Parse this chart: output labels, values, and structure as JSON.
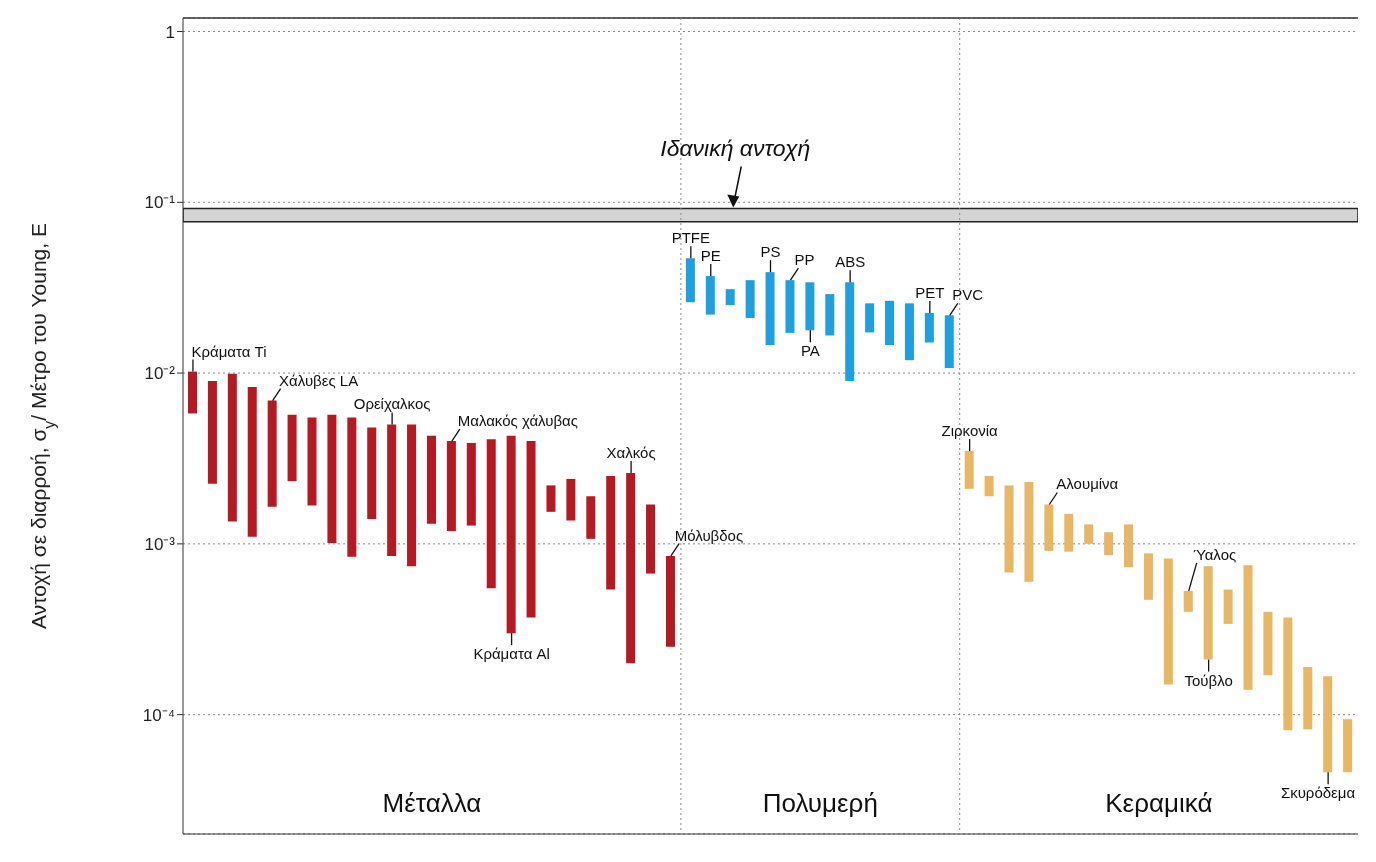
{
  "chart_data": {
    "type": "bar",
    "ylabel": "Αντοχή σε διαρροή, σ$_{y}$/ Μέτρο του Young, E",
    "categories": [
      null,
      null,
      null,
      null,
      null,
      null,
      null,
      null,
      null,
      null,
      null,
      null,
      null,
      null,
      null,
      null,
      null,
      null,
      null,
      null,
      null,
      null,
      null,
      null,
      null,
      null,
      null,
      null,
      null,
      null,
      null,
      null,
      null,
      null,
      null,
      null,
      null,
      null,
      null,
      null,
      null,
      null,
      null,
      null,
      null,
      null,
      null,
      null,
      null,
      null,
      null,
      null,
      null,
      null,
      null,
      null,
      null,
      null,
      null
    ],
    "log": true,
    "ylim": [
      2e-05,
      1.2
    ],
    "yticks": [
      1,
      {
        "value": 0.1,
        "label": "10⁻¹"
      },
      {
        "value": 0.01,
        "label": "10⁻²"
      },
      {
        "value": 0.001,
        "label": "10⁻³"
      },
      {
        "value": 0.0001,
        "label": "10⁻⁴"
      }
    ],
    "grid": true,
    "tick_labels": "y",
    "annotations": [
      "Μέταλλα",
      "Πολυμερή",
      "Κεραμικά"
    ],
    "bands": [
      {
        "axis": "y",
        "from": 0.077,
        "to": 0.092,
        "label": "Ιδανική αντοχή",
        "color": "#d4d4d4"
      }
    ],
    "series": [
      {
        "color": "#b51a22",
        "base": [
          0.0058,
          0.00225,
          0.00135,
          0.0011,
          0.00165,
          0.00233,
          0.00168,
          0.00101,
          0.00084,
          0.0014,
          0.00085,
          0.00074,
          0.00131,
          0.00119,
          0.00128,
          0.00055,
          0.0003,
          0.00037,
          0.00154,
          0.00137,
          0.00107,
          0.00054,
          0.0002,
          0.00067,
          0.00025,
          null,
          null,
          null,
          null,
          null,
          null,
          null,
          null,
          null,
          null,
          null,
          null,
          null,
          null,
          null,
          null,
          null,
          null,
          null,
          null,
          null,
          null,
          null,
          null,
          null,
          null,
          null,
          null,
          null,
          null,
          null,
          null,
          null,
          null
        ],
        "values": [
          0.0044,
          0.00675,
          0.00855,
          0.0072,
          0.00525,
          0.00337,
          0.00382,
          0.00469,
          0.00466,
          0.0034,
          0.00415,
          0.00426,
          0.00299,
          0.00281,
          0.00262,
          0.00355,
          0.004,
          0.00363,
          0.00066,
          0.00103,
          0.00083,
          0.00196,
          0.0024,
          0.00103,
          0.0006,
          null,
          null,
          null,
          null,
          null,
          null,
          null,
          null,
          null,
          null,
          null,
          null,
          null,
          null,
          null,
          null,
          null,
          null,
          null,
          null,
          null,
          null,
          null,
          null,
          null,
          null,
          null,
          null,
          null,
          null,
          null,
          null,
          null,
          null
        ],
        "value_labels": [
          "Κράματα Ti",
          null,
          null,
          null,
          "Χάλυβες LA",
          null,
          null,
          null,
          null,
          null,
          "Ορείχαλκος",
          null,
          null,
          "Μαλακός χάλυβας",
          null,
          null,
          "Κράματα Al",
          null,
          null,
          null,
          null,
          null,
          "Χαλκός",
          null,
          "Μόλυβδος",
          null,
          null,
          null,
          null,
          null,
          null,
          null,
          null,
          null,
          null,
          null,
          null,
          null,
          null,
          null,
          null,
          null,
          null,
          null,
          null,
          null,
          null,
          null,
          null,
          null,
          null,
          null,
          null,
          null,
          null,
          null,
          null,
          null,
          null
        ]
      },
      {
        "color": "#1e9fe0",
        "base": [
          null,
          null,
          null,
          null,
          null,
          null,
          null,
          null,
          null,
          null,
          null,
          null,
          null,
          null,
          null,
          null,
          null,
          null,
          null,
          null,
          null,
          null,
          null,
          null,
          null,
          0.026,
          0.022,
          0.025,
          0.021,
          0.0146,
          0.0172,
          0.0178,
          0.0166,
          0.009,
          0.0173,
          0.0146,
          0.0119,
          0.0151,
          0.0107,
          null,
          null,
          null,
          null,
          null,
          null,
          null,
          null,
          null,
          null,
          null,
          null,
          null,
          null,
          null,
          null,
          null,
          null,
          null,
          null
        ],
        "values": [
          null,
          null,
          null,
          null,
          null,
          null,
          null,
          null,
          null,
          null,
          null,
          null,
          null,
          null,
          null,
          null,
          null,
          null,
          null,
          null,
          null,
          null,
          null,
          null,
          null,
          0.021,
          0.015,
          0.006,
          0.014,
          0.0244,
          0.0178,
          0.0162,
          0.0124,
          0.025,
          0.0083,
          0.0119,
          0.0137,
          0.0074,
          0.0111,
          null,
          null,
          null,
          null,
          null,
          null,
          null,
          null,
          null,
          null,
          null,
          null,
          null,
          null,
          null,
          null,
          null,
          null,
          null,
          null
        ],
        "value_labels": [
          null,
          null,
          null,
          null,
          null,
          null,
          null,
          null,
          null,
          null,
          null,
          null,
          null,
          null,
          null,
          null,
          null,
          null,
          null,
          null,
          null,
          null,
          null,
          null,
          null,
          "PTFE",
          "PE",
          null,
          null,
          "PS",
          "PP",
          "PA",
          null,
          "ABS",
          null,
          null,
          null,
          "PET",
          "PVC",
          null,
          null,
          null,
          null,
          null,
          null,
          null,
          null,
          null,
          null,
          null,
          null,
          null,
          null,
          null,
          null,
          null,
          null,
          null,
          null
        ]
      },
      {
        "color": "#e8b766",
        "base": [
          null,
          null,
          null,
          null,
          null,
          null,
          null,
          null,
          null,
          null,
          null,
          null,
          null,
          null,
          null,
          null,
          null,
          null,
          null,
          null,
          null,
          null,
          null,
          null,
          null,
          null,
          null,
          null,
          null,
          null,
          null,
          null,
          null,
          null,
          null,
          null,
          null,
          null,
          null,
          0.0021,
          0.0019,
          0.00068,
          0.0006,
          0.00091,
          0.0009,
          0.001,
          0.00086,
          0.00073,
          0.00047,
          0.00015,
          0.0004,
          0.00021,
          0.00034,
          0.00014,
          0.00017,
          8.1e-05,
          8.2e-05,
          4.6e-05,
          4.6e-05
        ],
        "values": [
          null,
          null,
          null,
          null,
          null,
          null,
          null,
          null,
          null,
          null,
          null,
          null,
          null,
          null,
          null,
          null,
          null,
          null,
          null,
          null,
          null,
          null,
          null,
          null,
          null,
          null,
          null,
          null,
          null,
          null,
          null,
          null,
          null,
          null,
          null,
          null,
          null,
          null,
          null,
          0.0014,
          0.0006,
          0.00152,
          0.0017,
          0.00079,
          0.0006,
          0.0003,
          0.00031,
          0.00057,
          0.00041,
          0.00067,
          0.00013,
          0.00053,
          0.0002,
          0.00061,
          0.00023,
          0.000289,
          0.000108,
          0.000122,
          4.8e-05
        ],
        "value_labels": [
          null,
          null,
          null,
          null,
          null,
          null,
          null,
          null,
          null,
          null,
          null,
          null,
          null,
          null,
          null,
          null,
          null,
          null,
          null,
          null,
          null,
          null,
          null,
          null,
          null,
          null,
          null,
          null,
          null,
          null,
          null,
          null,
          null,
          null,
          null,
          null,
          null,
          null,
          null,
          "Ζιρκονία",
          null,
          null,
          null,
          "Αλουμίνα",
          null,
          null,
          null,
          null,
          null,
          null,
          "Ύαλος",
          "Τούβλο",
          null,
          null,
          null,
          null,
          null,
          "Σκυρόδεμα",
          null
        ]
      }
    ]
  }
}
